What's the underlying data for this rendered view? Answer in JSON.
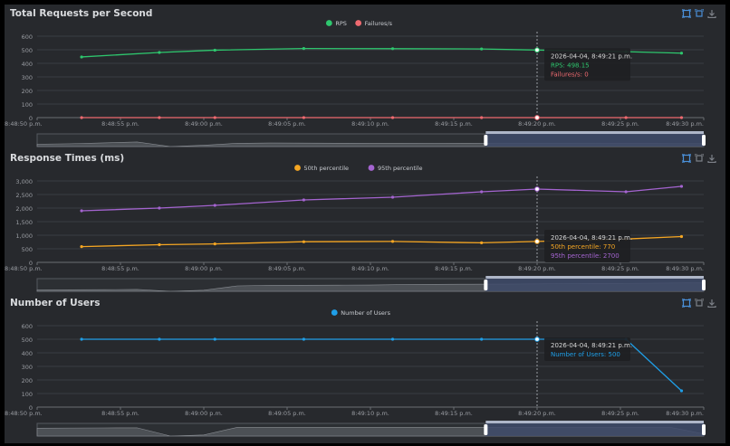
{
  "colors": {
    "bg": "#27292d",
    "grid": "#3a3d42",
    "axis": "#9a9da3",
    "tooltip_bg": "#1e2023",
    "tooltip_date": "#d8d8d8",
    "zoom_fill": "#3e4a6a"
  },
  "x_labels": [
    "8:48:50 p.m.",
    "8:48:55 p.m.",
    "8:49:00 p.m.",
    "8:49:05 p.m.",
    "8:49:10 p.m.",
    "8:49:15 p.m.",
    "8:49:20 p.m.",
    "8:49:25 p.m.",
    "8:49:30 p.m."
  ],
  "chart_data": [
    {
      "type": "line",
      "title": "Total Requests per Second",
      "x": [
        4,
        11,
        16,
        24,
        32,
        40,
        45,
        53,
        58
      ],
      "series": [
        {
          "name": "RPS",
          "color": "#2ec76e",
          "values": [
            447,
            480,
            497,
            509,
            508,
            506,
            498,
            486,
            475
          ]
        },
        {
          "name": "Failures/s",
          "color": "#ef6a70",
          "values": [
            0,
            0,
            0,
            0,
            0,
            0,
            0,
            0,
            0
          ]
        }
      ],
      "ylim": [
        0,
        600
      ],
      "yticks": [
        0,
        100,
        200,
        300,
        400,
        500,
        600
      ],
      "ytick_labels": [
        "0",
        "100",
        "200",
        "300",
        "400",
        "500",
        "600"
      ],
      "xlim": [
        0,
        60
      ],
      "cursor_x": 45,
      "tooltip": {
        "date": "2026-04-04, 8:49:21 p.m.",
        "lines": [
          "RPS: 498.15",
          "Failures/s: 0"
        ]
      },
      "zoom": {
        "start": 0.673,
        "end": 1.0,
        "preview": [
          0.22,
          0.26,
          0.34,
          0.42,
          0.0,
          0.12,
          0.3,
          0.33,
          0.32,
          0.31,
          0.3,
          0.3,
          0.29,
          0.3,
          0.29,
          0.29,
          0.29,
          0.28,
          0.28,
          0.27,
          0.27
        ]
      }
    },
    {
      "type": "line",
      "title": "Response Times (ms)",
      "x": [
        4,
        11,
        16,
        24,
        32,
        40,
        45,
        53,
        58
      ],
      "series": [
        {
          "name": "50th percentile",
          "color": "#f5a623",
          "values": [
            580,
            650,
            680,
            760,
            770,
            720,
            770,
            860,
            950
          ]
        },
        {
          "name": "95th percentile",
          "color": "#a464d0",
          "values": [
            1900,
            2000,
            2100,
            2300,
            2400,
            2600,
            2700,
            2600,
            2800
          ]
        }
      ],
      "ylim": [
        0,
        3000
      ],
      "yticks": [
        0,
        500,
        1000,
        1500,
        2000,
        2500,
        3000
      ],
      "ytick_labels": [
        "0",
        "500",
        "1,000",
        "1,500",
        "2,000",
        "2,500",
        "3,000"
      ],
      "xlim": [
        0,
        60
      ],
      "cursor_x": 45,
      "tooltip": {
        "date": "2026-04-04, 8:49:21 p.m.",
        "lines": [
          "50th percentile: 770",
          "95th percentile: 2700"
        ]
      },
      "zoom": {
        "start": 0.673,
        "end": 1.0,
        "preview": [
          0.12,
          0.14,
          0.15,
          0.17,
          0.0,
          0.1,
          0.5,
          0.55,
          0.56,
          0.57,
          0.58,
          0.62,
          0.64,
          0.65,
          0.66,
          0.68,
          0.7,
          0.72,
          0.74,
          0.76,
          0.78
        ]
      }
    },
    {
      "type": "line",
      "title": "Number of Users",
      "x": [
        4,
        11,
        16,
        24,
        32,
        40,
        45,
        53,
        58
      ],
      "series": [
        {
          "name": "Number of Users",
          "color": "#1f9fe8",
          "values": [
            500,
            500,
            500,
            500,
            500,
            500,
            500,
            500,
            120
          ]
        }
      ],
      "ylim": [
        0,
        600
      ],
      "yticks": [
        0,
        100,
        200,
        300,
        400,
        500,
        600
      ],
      "ytick_labels": [
        "0",
        "100",
        "200",
        "300",
        "400",
        "500",
        "600"
      ],
      "xlim": [
        0,
        60
      ],
      "cursor_x": 45,
      "tooltip": {
        "date": "2026-04-04, 8:49:21 p.m.",
        "lines": [
          "Number of Users: 500"
        ]
      },
      "zoom": {
        "start": 0.673,
        "end": 1.0,
        "preview": [
          0.72,
          0.74,
          0.75,
          0.76,
          0.0,
          0.1,
          0.8,
          0.8,
          0.8,
          0.8,
          0.8,
          0.8,
          0.8,
          0.8,
          0.8,
          0.8,
          0.8,
          0.8,
          0.8,
          0.8,
          0.2
        ]
      }
    }
  ]
}
